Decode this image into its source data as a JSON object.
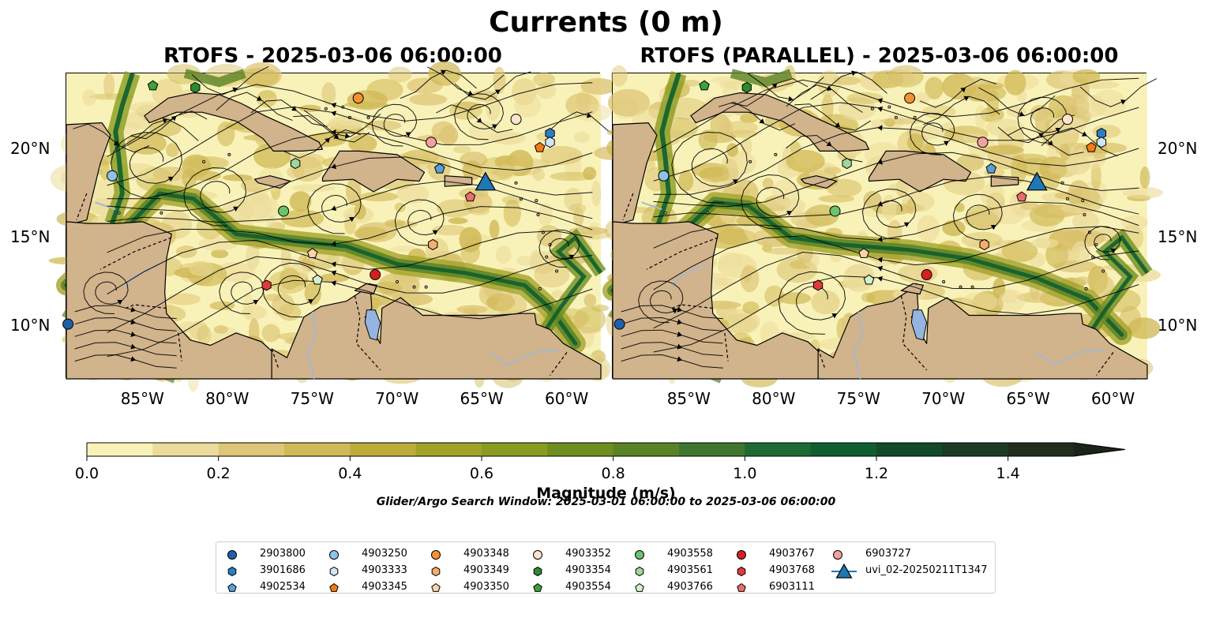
{
  "figure": {
    "suptitle": "Currents (0 m)",
    "search_window": "Glider/Argo Search Window: 2025-03-01 06:00:00 to 2025-03-06 06:00:00"
  },
  "chart_data": [
    {
      "type": "heatmap",
      "title": "RTOFS - 2025-03-06 06:00:00",
      "xlim": [
        -89.5,
        -58.0
      ],
      "ylim": [
        7.0,
        24.3
      ],
      "xticks": [
        "85°W",
        "80°W",
        "75°W",
        "70°W",
        "65°W",
        "60°W"
      ],
      "yticks": [
        "20°N",
        "15°N",
        "10°N"
      ],
      "ytick_side": "left",
      "field": "surface current magnitude with streamlines",
      "observations": [
        {
          "id": "2903800",
          "lon": -89.4,
          "lat": 10.1
        },
        {
          "id": "3901686",
          "lon": -61.0,
          "lat": 20.9
        },
        {
          "id": "4902534",
          "lon": -67.5,
          "lat": 18.9
        },
        {
          "id": "4903250",
          "lon": -86.8,
          "lat": 18.5
        },
        {
          "id": "4903333",
          "lon": -61.0,
          "lat": 20.4
        },
        {
          "id": "4903345",
          "lon": -61.6,
          "lat": 20.1
        },
        {
          "id": "4903348",
          "lon": -72.3,
          "lat": 22.9
        },
        {
          "id": "4903349",
          "lon": -67.9,
          "lat": 14.6
        },
        {
          "id": "4903350",
          "lon": -75.0,
          "lat": 14.1
        },
        {
          "id": "4903352",
          "lon": -63.0,
          "lat": 21.7
        },
        {
          "id": "4903354",
          "lon": -81.9,
          "lat": 23.5
        },
        {
          "id": "4903554",
          "lon": -84.4,
          "lat": 23.6
        },
        {
          "id": "4903558",
          "lon": -76.7,
          "lat": 16.5
        },
        {
          "id": "4903561",
          "lon": -76.0,
          "lat": 19.2
        },
        {
          "id": "4903766",
          "lon": -74.7,
          "lat": 12.6
        },
        {
          "id": "4903767",
          "lon": -71.3,
          "lat": 12.9
        },
        {
          "id": "4903768",
          "lon": -77.7,
          "lat": 12.3
        },
        {
          "id": "6903111",
          "lon": -65.7,
          "lat": 17.3
        },
        {
          "id": "6903727",
          "lon": -68.0,
          "lat": 20.4
        },
        {
          "id": "uvi_02-20250211T1347",
          "lon": -64.8,
          "lat": 18.1
        }
      ]
    },
    {
      "type": "heatmap",
      "title": "RTOFS (PARALLEL) - 2025-03-06 06:00:00",
      "xlim": [
        -89.5,
        -58.0
      ],
      "ylim": [
        7.0,
        24.3
      ],
      "xticks": [
        "85°W",
        "80°W",
        "75°W",
        "70°W",
        "65°W",
        "60°W"
      ],
      "yticks": [
        "20°N",
        "15°N",
        "10°N"
      ],
      "ytick_side": "right",
      "field": "surface current magnitude with streamlines",
      "observations": "same as left panel"
    }
  ],
  "colorbar": {
    "label": "Magnitude (m/s)",
    "ticks": [
      "0.0",
      "0.2",
      "0.4",
      "0.6",
      "0.8",
      "1.0",
      "1.2",
      "1.4"
    ],
    "range": [
      0.0,
      1.5
    ],
    "extend": "max",
    "colors": [
      "#f9f2b8",
      "#ecdc9b",
      "#ddc677",
      "#d0b957",
      "#bcad3b",
      "#a2a22b",
      "#8a9c20",
      "#6f8e20",
      "#5a8226",
      "#3f7630",
      "#1e6a33",
      "#0e5e2f",
      "#134a2a",
      "#1d3b24",
      "#222e1d",
      "#1a2418"
    ]
  },
  "colors": {
    "land": "#d1b38c",
    "lake": "#95b4e0",
    "river": "#a6b8cf",
    "current_slow": "#f7efb5",
    "current_fast": "#1e6a33"
  },
  "legend": {
    "columns": [
      [
        {
          "label": "2903800",
          "marker": "circle",
          "color": "#1f5fa8"
        },
        {
          "label": "3901686",
          "marker": "hexagon",
          "color": "#2e7dc7"
        },
        {
          "label": "4902534",
          "marker": "pentagon",
          "color": "#5a9fd8"
        }
      ],
      [
        {
          "label": "4903250",
          "marker": "circle",
          "color": "#8cc3ea"
        },
        {
          "label": "4903333",
          "marker": "hexagon",
          "color": "#cfe6f6"
        },
        {
          "label": "4903345",
          "marker": "pentagon",
          "color": "#f07c12"
        }
      ],
      [
        {
          "label": "4903348",
          "marker": "circle",
          "color": "#f59232"
        },
        {
          "label": "4903349",
          "marker": "hexagon",
          "color": "#f8ad6b"
        },
        {
          "label": "4903350",
          "marker": "pentagon",
          "color": "#fbd3a8"
        }
      ],
      [
        {
          "label": "4903352",
          "marker": "circle",
          "color": "#fde3cb"
        },
        {
          "label": "4903354",
          "marker": "hexagon",
          "color": "#2a8a2c"
        },
        {
          "label": "4903554",
          "marker": "pentagon",
          "color": "#3ca23c"
        }
      ],
      [
        {
          "label": "4903558",
          "marker": "circle",
          "color": "#6bc46b"
        },
        {
          "label": "4903561",
          "marker": "hexagon",
          "color": "#9ed79a"
        },
        {
          "label": "4903766",
          "marker": "pentagon",
          "color": "#d3f0cd"
        }
      ],
      [
        {
          "label": "4903767",
          "marker": "circle",
          "color": "#d42020"
        },
        {
          "label": "4903768",
          "marker": "hexagon",
          "color": "#e03a3a"
        },
        {
          "label": "6903111",
          "marker": "pentagon",
          "color": "#ec6c6c"
        }
      ],
      [
        {
          "label": "6903727",
          "marker": "circle",
          "color": "#f4a0a0"
        },
        {
          "label": "uvi_02-20250211T1347",
          "marker": "triangle-line",
          "color": "#1f77b4"
        }
      ]
    ]
  }
}
